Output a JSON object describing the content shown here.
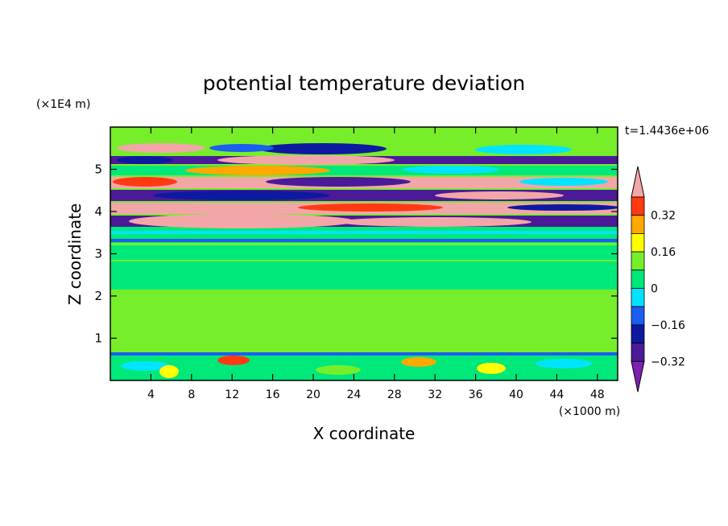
{
  "chart_data": {
    "type": "heatmap",
    "title": "potential temperature deviation",
    "xlabel": "X coordinate",
    "ylabel": "Z coordinate",
    "x_unit": "(×1000 m)",
    "y_unit": "(×1E4 m)",
    "time_label": "t=1.4436e+06",
    "xlim": [
      0,
      50
    ],
    "ylim": [
      0,
      6
    ],
    "x_ticks": [
      4,
      8,
      12,
      16,
      20,
      24,
      28,
      32,
      36,
      40,
      44,
      48
    ],
    "y_ticks": [
      1,
      2,
      3,
      4,
      5
    ],
    "colorbar": {
      "levels": [
        -0.4,
        -0.32,
        -0.24,
        -0.16,
        -0.08,
        0,
        0.08,
        0.16,
        0.24,
        0.32,
        0.4
      ],
      "labels": [
        0.32,
        0.16,
        0,
        -0.16,
        -0.32
      ],
      "label_texts": [
        "0.32",
        "0.16",
        "0",
        "−0.16",
        "−0.32"
      ],
      "colors": [
        "#7f1fb0",
        "#4b1a99",
        "#0d1aa0",
        "#1a5ef2",
        "#00e5ff",
        "#00e87a",
        "#77ee2a",
        "#ffff00",
        "#ffa800",
        "#ff3a12",
        "#f3a6a8"
      ]
    }
  }
}
